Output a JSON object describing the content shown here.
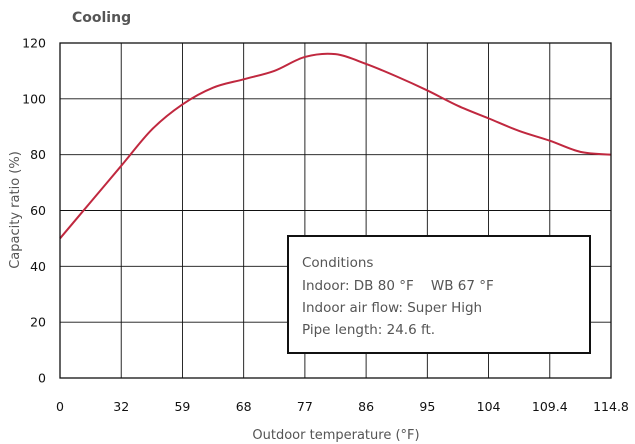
{
  "chart_data": {
    "type": "line",
    "title": "Cooling",
    "xlabel": "Outdoor temperature (°F)",
    "ylabel": "Capacity ratio (%)",
    "x_tick_labels": [
      "0",
      "32",
      "59",
      "68",
      "77",
      "86",
      "95",
      "104",
      "109.4",
      "114.8"
    ],
    "y_ticks": [
      0,
      20,
      40,
      60,
      80,
      100,
      120
    ],
    "ylim": [
      0,
      120
    ],
    "grid": true,
    "series": [
      {
        "color": "#c0283f",
        "x_index": [
          0,
          0.5,
          1,
          1.5,
          2,
          2.5,
          3,
          3.5,
          4,
          4.5,
          5,
          5.5,
          6,
          6.5,
          7,
          7.5,
          8,
          8.5,
          9
        ],
        "values": [
          50,
          63,
          76,
          89,
          98,
          104,
          107,
          110,
          115,
          116,
          112.5,
          108,
          103,
          97.5,
          93,
          88.5,
          85,
          81,
          80
        ]
      }
    ],
    "annotations": [
      {
        "lines": [
          "Conditions",
          "Indoor: DB 80 °F    WB 67 °F",
          "Indoor air flow: Super High",
          "Pipe length: 24.6 ft."
        ]
      }
    ]
  }
}
